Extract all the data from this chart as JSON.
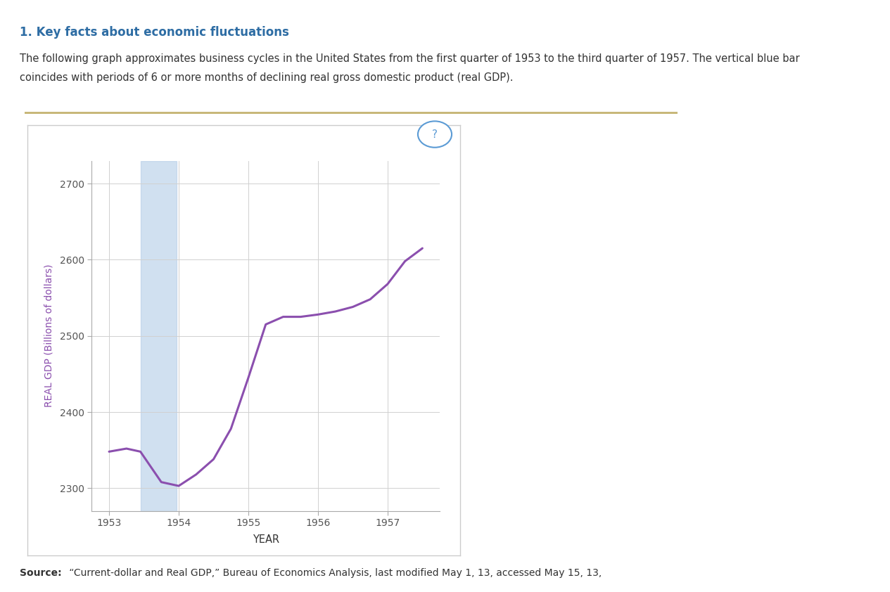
{
  "title": "1. Key facts about economic fluctuations",
  "subtitle_line1": "The following graph approximates business cycles in the United States from the first quarter of 1953 to the third quarter of 1957. The vertical blue bar",
  "subtitle_line2": "coincides with periods of 6 or more months of declining real gross domestic product (real GDP).",
  "source_bold": "Source:",
  "source_text": " “Current-dollar and Real GDP,” Bureau of Economics Analysis, last modified May 1, 13, accessed May 15, 13,",
  "xlabel": "YEAR",
  "ylabel": "REAL GDP (Billions of dollars)",
  "x_ticks": [
    1953,
    1954,
    1955,
    1956,
    1957
  ],
  "y_ticks": [
    2300,
    2400,
    2500,
    2600,
    2700
  ],
  "ylim": [
    2270,
    2730
  ],
  "xlim": [
    1952.75,
    1957.75
  ],
  "line_color": "#8B4FAE",
  "line_width": 2.2,
  "shading_x_start": 1953.45,
  "shading_x_end": 1953.97,
  "shading_color": "#b8d0e8",
  "shading_alpha": 0.65,
  "background_color": "#ffffff",
  "plot_bg_color": "#ffffff",
  "grid_color": "#d0d0d0",
  "x_data": [
    1953.0,
    1953.25,
    1953.45,
    1953.75,
    1954.0,
    1954.25,
    1954.5,
    1954.75,
    1955.0,
    1955.25,
    1955.5,
    1955.75,
    1956.0,
    1956.25,
    1956.5,
    1956.75,
    1957.0,
    1957.25,
    1957.5
  ],
  "y_data": [
    2348,
    2352,
    2348,
    2308,
    2303,
    2318,
    2338,
    2378,
    2445,
    2515,
    2525,
    2525,
    2528,
    2532,
    2538,
    2548,
    2568,
    2598,
    2615
  ],
  "border_color": "#c8b87a",
  "outer_box_color": "#e0e0e0",
  "ylabel_color": "#8B4FAE",
  "tick_label_color": "#555555"
}
